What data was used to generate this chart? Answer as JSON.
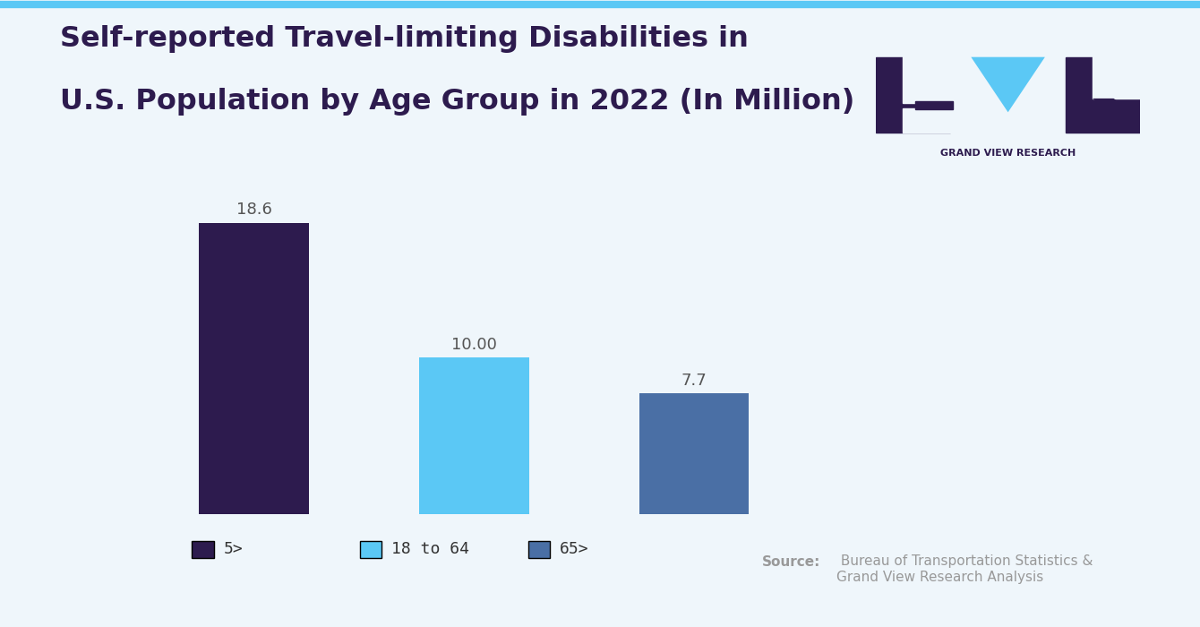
{
  "title_line1": "Self-reported Travel-limiting Disabilities in",
  "title_line2": "U.S. Population by Age Group in 2022 (In Million)",
  "categories": [
    "5>",
    "18 to 64",
    "65>"
  ],
  "values": [
    18.6,
    10.0,
    7.7
  ],
  "bar_colors": [
    "#2D1B4E",
    "#5BC8F5",
    "#4A6FA5"
  ],
  "value_labels": [
    "18.6",
    "10.00",
    "7.7"
  ],
  "legend_labels": [
    "5>",
    "18 to 64",
    "65>"
  ],
  "source_bold": "Source:",
  "source_text": " Bureau of Transportation Statistics &\nGrand View Research Analysis",
  "background_color": "#EFF6FB",
  "title_color": "#2D1B4E",
  "label_color": "#555555",
  "source_color": "#999999",
  "ylim": [
    0,
    22
  ],
  "bar_width": 0.5,
  "title_fontsize": 23,
  "label_fontsize": 13,
  "legend_fontsize": 13,
  "source_fontsize": 11,
  "top_bar_color": "#5BC8F5"
}
